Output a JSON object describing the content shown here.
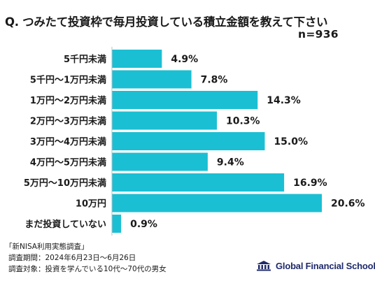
{
  "title": "Q. つみたて投資枠で毎月投資している積立金額を教えて下さい",
  "n_label": "n=936",
  "chart_data": {
    "type": "bar",
    "orientation": "horizontal",
    "categories": [
      "5千円未満",
      "5千円～1万円未満",
      "1万円～2万円未満",
      "2万円～3万円未満",
      "3万円～4万円未満",
      "4万円～5万円未満",
      "5万円～10万円未満",
      "10万円",
      "まだ投資していない"
    ],
    "values": [
      4.9,
      7.8,
      14.3,
      10.3,
      15.0,
      9.4,
      16.9,
      20.6,
      0.9
    ],
    "value_labels": [
      "4.9%",
      "7.8%",
      "14.3%",
      "10.3%",
      "15.0%",
      "9.4%",
      "16.9%",
      "20.6%",
      "0.9%"
    ],
    "unit": "%",
    "xlim": [
      0,
      20.6
    ],
    "grid": false,
    "bar_color": "#1bbfd3"
  },
  "footer": {
    "source": "「新NISA利用実態調査」",
    "period": "調査期間：2024年6月23日～6月26日",
    "target": "調査対象：投資を学んでいる10代～70代の男女"
  },
  "logo": {
    "icon": "school-building-icon",
    "text": "Global Financial School",
    "color": "#1f2a6b"
  }
}
